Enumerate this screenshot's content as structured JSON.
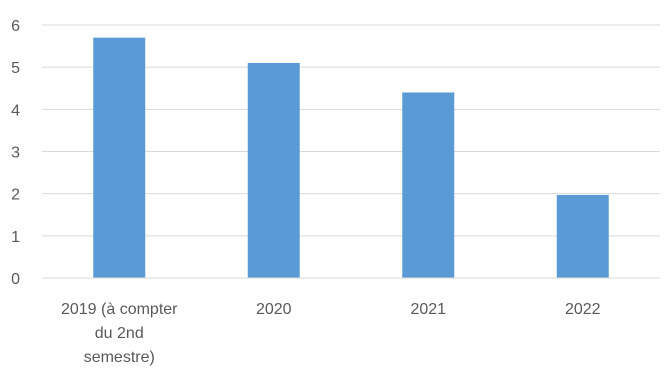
{
  "chart_data": {
    "type": "bar",
    "title": "",
    "xlabel": "",
    "ylabel": "",
    "categories": [
      [
        "2019 (à compter",
        "du 2nd",
        "semestre)"
      ],
      [
        "2020"
      ],
      [
        "2021"
      ],
      [
        "2022"
      ]
    ],
    "values": [
      5.7,
      5.1,
      4.4,
      1.97
    ],
    "ylim": [
      0,
      6
    ],
    "yticks": [
      "0",
      "1",
      "2",
      "3",
      "4",
      "5",
      "6"
    ],
    "grid": true,
    "legend": "none",
    "colors": {
      "bar": "#5b9bd5",
      "grid": "#d9d9d9",
      "axis": "#d9d9d9",
      "text": "#595959"
    }
  }
}
